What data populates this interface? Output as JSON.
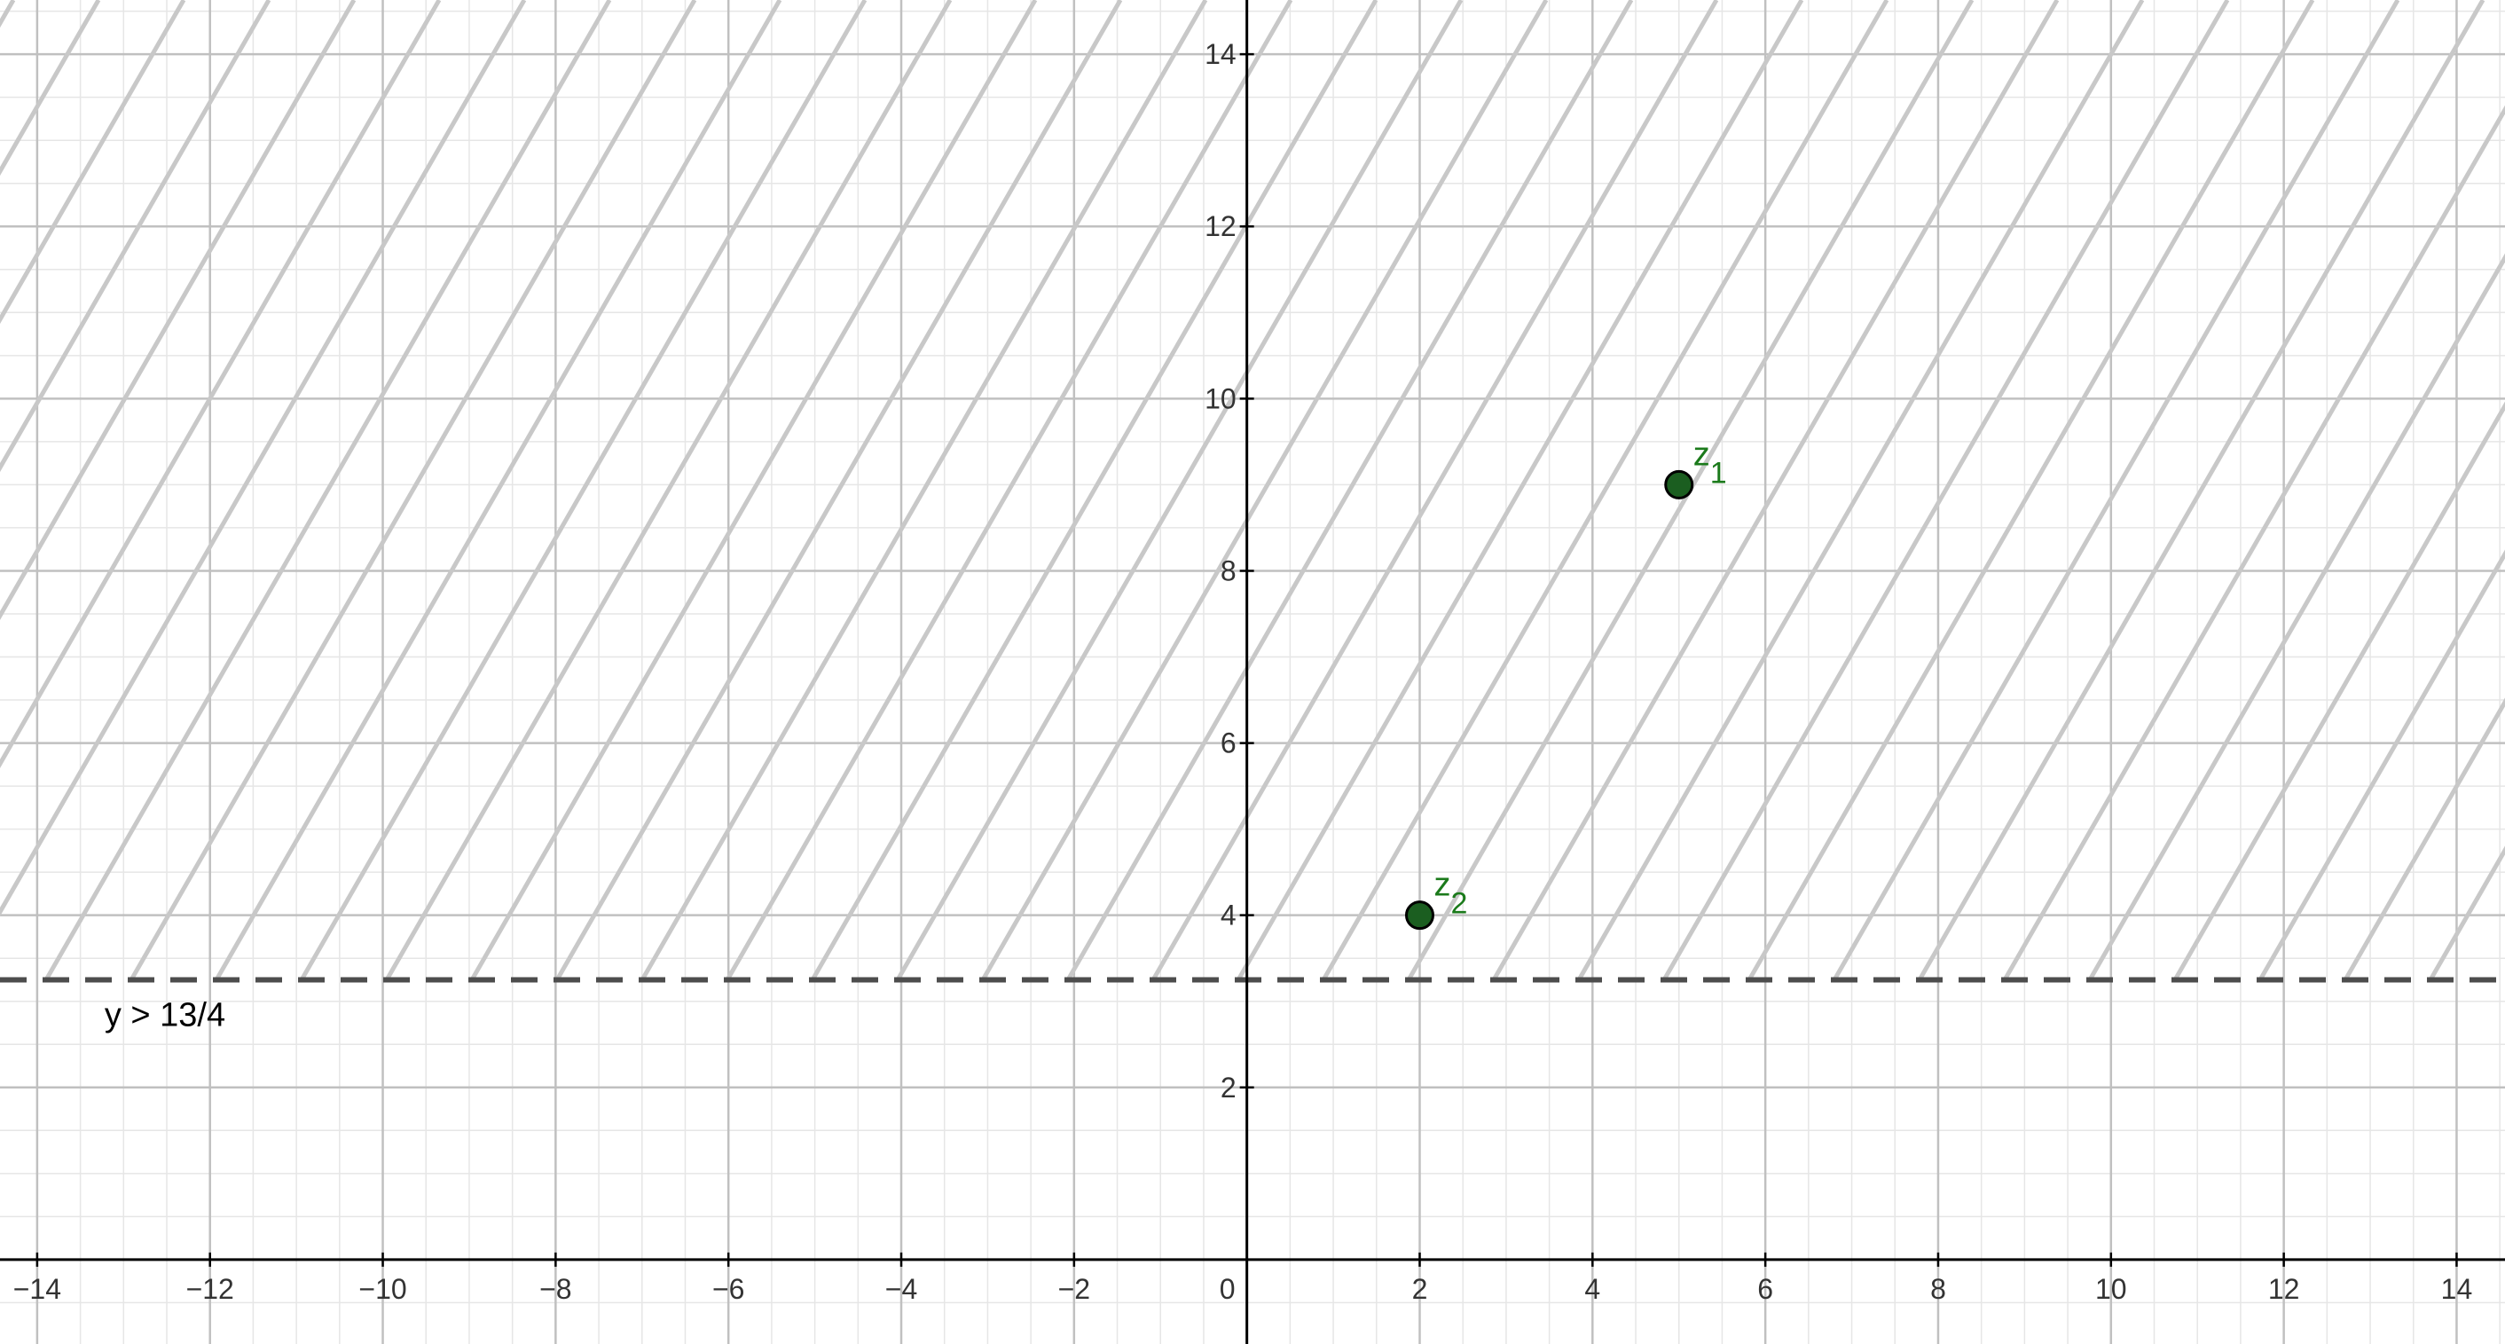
{
  "chart_data": {
    "type": "scatter",
    "xlim": [
      -14.43,
      14.56
    ],
    "ylim": [
      -0.98,
      14.63
    ],
    "grid": true,
    "minor_grid_step": 0.5,
    "major_grid_step": 2,
    "x_ticks": [
      -14,
      -12,
      -10,
      -8,
      -6,
      -4,
      -2,
      2,
      4,
      6,
      8,
      10,
      12,
      14
    ],
    "y_ticks": [
      2,
      4,
      6,
      8,
      10,
      12,
      14
    ],
    "origin_label": "0",
    "region": {
      "label": "y > 13/4",
      "boundary_y": 3.25,
      "boundary_style": "dashed",
      "shaded": "above",
      "hatch": "diagonal"
    },
    "points": [
      {
        "name": "z",
        "subscript": "1",
        "x": 5,
        "y": 9
      },
      {
        "name": "z",
        "subscript": "2",
        "x": 2,
        "y": 4
      }
    ],
    "colors": {
      "point_fill": "#1b5e20",
      "point_label": "#1b7a1b",
      "hatch": "#c8c8c8",
      "boundary": "#4d4d4d",
      "axis": "#000000",
      "major_grid": "#c0c0c0",
      "minor_grid": "#e6e6e6"
    }
  }
}
